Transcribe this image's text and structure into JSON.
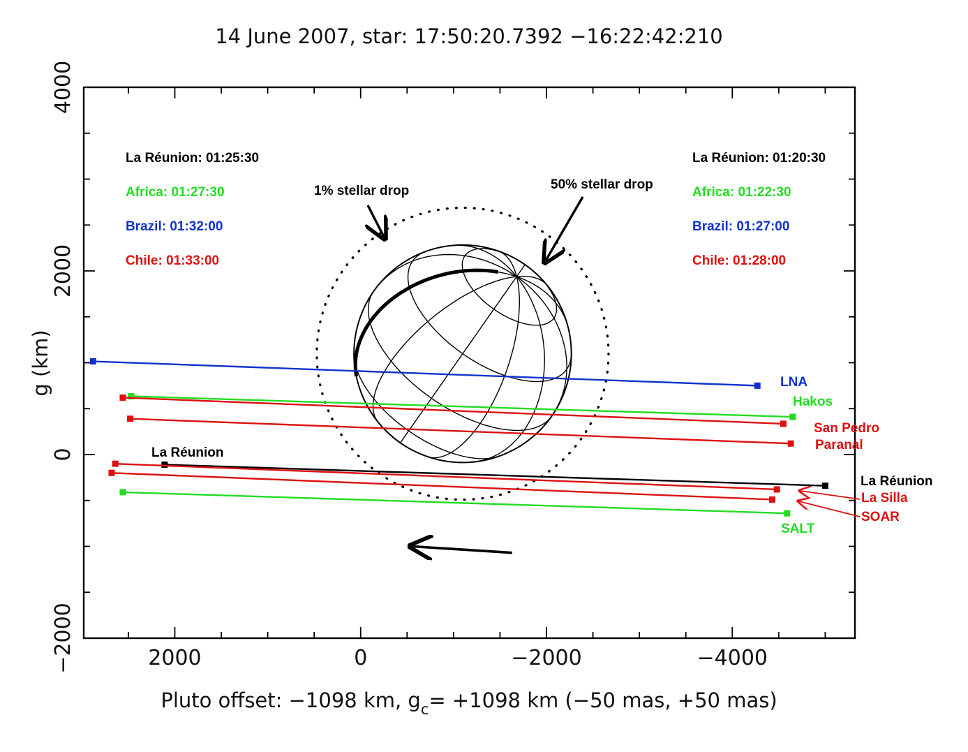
{
  "chart_data": {
    "type": "line",
    "title": "14 June 2007, star: 17:50:20.7392 −16:22:42:210",
    "xlabel_parts": [
      "Pluto offset: −1098 km, g",
      "c",
      "= +1098 km (−50 mas, +50 mas)"
    ],
    "ylabel": "g  (km)",
    "xlim": [
      2980,
      -5320
    ],
    "ylim": [
      -2000,
      4000
    ],
    "x_reversed": true,
    "xticks": [
      2000,
      0,
      -2000,
      -4000
    ],
    "xtick_labels": [
      "2000",
      "0",
      "−2000",
      "−4000"
    ],
    "yticks": [
      -2000,
      0,
      2000,
      4000
    ],
    "ytick_labels": [
      "−2000",
      "0",
      "2000",
      "4000"
    ],
    "colors": {
      "black": "#000000",
      "green": "#22dd22",
      "blue": "#1133cc",
      "red": "#dd1111"
    },
    "series": [
      {
        "name": "LNA",
        "color": "blue",
        "x": [
          2880,
          -4270
        ],
        "y": [
          1015,
          750
        ]
      },
      {
        "name": "Hakos",
        "color": "green",
        "x": [
          2470,
          -4650
        ],
        "y": [
          635,
          410
        ]
      },
      {
        "name": "San Pedro",
        "color": "red",
        "x": [
          2560,
          -4550
        ],
        "y": [
          620,
          335
        ]
      },
      {
        "name": "Paranal",
        "color": "red",
        "x": [
          2480,
          -4630
        ],
        "y": [
          390,
          120
        ]
      },
      {
        "name": "La Réunion",
        "color": "black",
        "x": [
          2110,
          -5000
        ],
        "y": [
          -110,
          -340
        ]
      },
      {
        "name": "La Silla",
        "color": "red",
        "x": [
          2640,
          -4480
        ],
        "y": [
          -100,
          -380
        ]
      },
      {
        "name": "SOAR",
        "color": "red",
        "x": [
          2680,
          -4430
        ],
        "y": [
          -200,
          -490
        ]
      },
      {
        "name": "SALT",
        "color": "green",
        "x": [
          2560,
          -4590
        ],
        "y": [
          -410,
          -640
        ]
      }
    ],
    "pluto_center": [
      -1098,
      1098
    ],
    "pluto_radius_km": 1170,
    "stellar_drop_1pct_radius_km": 1570,
    "motion_arrow": {
      "from": [
        -1630,
        -1070
      ],
      "to": [
        -560,
        -1000
      ]
    },
    "annotations": {
      "drop1": "1% stellar drop",
      "drop50": "50% stellar drop",
      "la_reunion_label": "La Réunion",
      "left_times": [
        {
          "text": "La Réunion: 01:25:30",
          "color": "black"
        },
        {
          "text": "Africa: 01:27:30",
          "color": "green"
        },
        {
          "text": "Brazil: 01:32:00",
          "color": "blue"
        },
        {
          "text": "Chile: 01:33:00",
          "color": "red"
        }
      ],
      "right_times": [
        {
          "text": "La Réunion:  01:20:30",
          "color": "black"
        },
        {
          "text": "Africa: 01:22:30",
          "color": "green"
        },
        {
          "text": "Brazil: 01:27:00",
          "color": "blue"
        },
        {
          "text": "Chile: 01:28:00",
          "color": "red"
        }
      ]
    }
  }
}
